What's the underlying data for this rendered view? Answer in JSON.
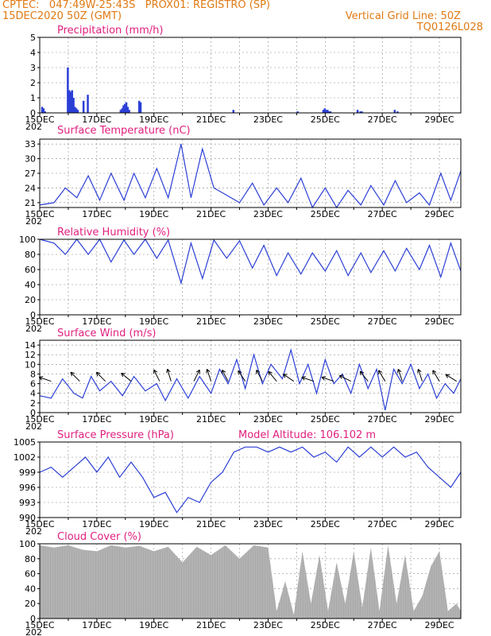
{
  "header": {
    "line1_left": "CPTEC:   047:49W-25:43S   PROX01: REGISTRO (SP)",
    "line2_left": "15DEC2020 50Z (GMT)",
    "line2_right": "Vertical Grid Line: 50Z",
    "line3_right": "TQ0126L028"
  },
  "colors": {
    "title": "#e0207f",
    "header": "#e07a14",
    "line": "#2b3fd6",
    "bar": "#2b3fd6",
    "cloud": "#aaaaaa"
  },
  "x_axis": {
    "labels": [
      "15DEC",
      "17DEC",
      "19DEC",
      "21DEC",
      "23DEC",
      "25DEC",
      "27DEC",
      "29DEC"
    ],
    "label_days": [
      0,
      2,
      4,
      6,
      8,
      10,
      12,
      14
    ],
    "cut_label": "202"
  },
  "chart_data": [
    {
      "id": "precip",
      "type": "bar",
      "title": "Precipitation (mm/h)",
      "ylim": [
        0,
        5
      ],
      "yticks": [
        0,
        1,
        2,
        3,
        4,
        5
      ],
      "series": [
        {
          "x": [
            0.05,
            0.1,
            0.15,
            0.95,
            1.0,
            1.05,
            1.1,
            1.15,
            1.2,
            1.25,
            1.3,
            1.5,
            1.65,
            2.8,
            2.85,
            2.9,
            2.95,
            3.0,
            3.05,
            3.1,
            3.45,
            3.5,
            6.75,
            9.0,
            9.9,
            9.95,
            10.0,
            10.05,
            10.1,
            10.15,
            11.1,
            11.2,
            11.25,
            12.4,
            12.5
          ],
          "values": [
            0.4,
            0.3,
            0.1,
            3.0,
            1.5,
            1.4,
            1.5,
            1.0,
            0.4,
            0.3,
            0.2,
            0.8,
            1.2,
            0.2,
            0.3,
            0.5,
            0.6,
            0.7,
            0.4,
            0.2,
            0.8,
            0.7,
            0.2,
            0.1,
            0.2,
            0.3,
            0.2,
            0.2,
            0.1,
            0.1,
            0.2,
            0.1,
            0.1,
            0.2,
            0.1
          ]
        }
      ]
    },
    {
      "id": "temp",
      "type": "line",
      "title": "Surface Temperature (nC)",
      "ylim": [
        20,
        34
      ],
      "yticks": [
        21,
        24,
        27,
        30,
        33
      ],
      "series": [
        {
          "x": [
            0,
            0.5,
            0.9,
            1.3,
            1.7,
            2.1,
            2.5,
            2.95,
            3.3,
            3.7,
            4.1,
            4.5,
            4.95,
            5.3,
            5.7,
            6.1,
            6.55,
            7.0,
            7.45,
            7.85,
            8.3,
            8.7,
            9.15,
            9.55,
            10.0,
            10.4,
            10.8,
            11.25,
            11.6,
            12.05,
            12.45,
            12.85,
            13.3,
            13.65,
            14.05,
            14.4,
            14.75
          ],
          "values": [
            20.5,
            21.0,
            24.0,
            22.0,
            26.5,
            21.5,
            27.0,
            21.5,
            27.0,
            22.0,
            28.0,
            22.0,
            33.0,
            22.0,
            32.0,
            24.0,
            22.5,
            21.0,
            25.0,
            20.5,
            24.0,
            21.0,
            26.0,
            20.0,
            24.0,
            20.0,
            23.5,
            20.5,
            24.5,
            20.5,
            25.5,
            21.0,
            23.0,
            20.5,
            27.0,
            21.5,
            27.5
          ]
        }
      ]
    },
    {
      "id": "rh",
      "type": "line",
      "title": "Relative Humidity (%)",
      "ylim": [
        0,
        100
      ],
      "yticks": [
        0,
        20,
        40,
        60,
        80,
        100
      ],
      "series": [
        {
          "x": [
            0,
            0.5,
            0.9,
            1.3,
            1.7,
            2.1,
            2.5,
            2.95,
            3.3,
            3.7,
            4.1,
            4.5,
            4.95,
            5.3,
            5.7,
            6.1,
            6.55,
            7.0,
            7.45,
            7.85,
            8.3,
            8.7,
            9.15,
            9.55,
            10.0,
            10.4,
            10.8,
            11.25,
            11.6,
            12.05,
            12.45,
            12.85,
            13.3,
            13.65,
            14.05,
            14.4,
            14.75
          ],
          "values": [
            100,
            95,
            80,
            100,
            80,
            100,
            70,
            99,
            80,
            100,
            75,
            99,
            42,
            95,
            48,
            99,
            75,
            98,
            62,
            92,
            52,
            82,
            54,
            82,
            58,
            85,
            52,
            82,
            56,
            85,
            58,
            88,
            60,
            92,
            50,
            95,
            58
          ]
        }
      ]
    },
    {
      "id": "wind",
      "type": "line",
      "title": "Surface Wind (m/s)",
      "ylim": [
        0,
        15
      ],
      "yticks": [
        0,
        2,
        4,
        6,
        8,
        10,
        12,
        14
      ],
      "series": [
        {
          "x": [
            0,
            0.4,
            0.8,
            1.2,
            1.5,
            1.8,
            2.1,
            2.5,
            2.9,
            3.3,
            3.7,
            4.1,
            4.4,
            4.8,
            5.2,
            5.6,
            6.0,
            6.3,
            6.6,
            6.9,
            7.2,
            7.5,
            7.8,
            8.1,
            8.5,
            8.8,
            9.1,
            9.4,
            9.7,
            10.0,
            10.3,
            10.6,
            10.9,
            11.2,
            11.5,
            11.8,
            12.1,
            12.4,
            12.7,
            13.0,
            13.3,
            13.6,
            13.9,
            14.2,
            14.5,
            14.75
          ],
          "values": [
            3.5,
            3,
            7,
            4,
            3,
            7.5,
            4.5,
            6.5,
            3.5,
            7.5,
            4.5,
            6,
            2.5,
            7,
            3,
            7.5,
            4,
            9,
            6,
            11,
            5,
            12,
            6,
            10,
            7,
            13,
            6,
            10,
            4,
            11,
            6,
            8,
            4,
            10,
            5,
            9,
            0.5,
            9,
            6,
            10,
            5,
            8,
            3,
            6,
            4,
            7
          ]
        }
      ],
      "barbs": [
        {
          "x": 0.4,
          "u": -1.5,
          "v": 0.5
        },
        {
          "x": 1.4,
          "u": -1.0,
          "v": 1.0
        },
        {
          "x": 2.3,
          "u": -1.0,
          "v": 1.0
        },
        {
          "x": 3.2,
          "u": -1.2,
          "v": 1.0
        },
        {
          "x": 4.2,
          "u": -0.5,
          "v": 1.0
        },
        {
          "x": 4.6,
          "u": -0.3,
          "v": 1.0
        },
        {
          "x": 5.4,
          "u": 0.5,
          "v": 1.0
        },
        {
          "x": 6.0,
          "u": -0.5,
          "v": 1.5
        },
        {
          "x": 6.6,
          "u": -0.8,
          "v": 1.5
        },
        {
          "x": 7.2,
          "u": -1.0,
          "v": 1.5
        },
        {
          "x": 7.8,
          "u": -0.8,
          "v": 1.5
        },
        {
          "x": 8.3,
          "u": -1.0,
          "v": 1.2
        },
        {
          "x": 8.9,
          "u": -1.5,
          "v": 1.0
        },
        {
          "x": 9.6,
          "u": -1.5,
          "v": 0.5
        },
        {
          "x": 10.3,
          "u": -1.5,
          "v": 0.5
        },
        {
          "x": 10.9,
          "u": -1.0,
          "v": 0.5
        },
        {
          "x": 11.5,
          "u": -0.8,
          "v": 1.0
        },
        {
          "x": 12.1,
          "u": -0.6,
          "v": 1.0
        },
        {
          "x": 12.7,
          "u": -0.5,
          "v": 1.5
        },
        {
          "x": 13.4,
          "u": -0.5,
          "v": 1.5
        },
        {
          "x": 14.0,
          "u": -0.6,
          "v": 1.0
        },
        {
          "x": 14.6,
          "u": -0.8,
          "v": 0.5
        }
      ]
    },
    {
      "id": "press",
      "type": "line",
      "title": "Surface Pressure (hPa)",
      "title2": "Model Altitude: 106.102  m",
      "ylim": [
        990,
        1005
      ],
      "yticks": [
        990,
        993,
        996,
        999,
        1002,
        1005
      ],
      "series": [
        {
          "x": [
            0,
            0.4,
            0.8,
            1.2,
            1.6,
            2.0,
            2.4,
            2.8,
            3.2,
            3.6,
            4.0,
            4.4,
            4.8,
            5.2,
            5.6,
            6.0,
            6.4,
            6.8,
            7.2,
            7.6,
            8.0,
            8.4,
            8.8,
            9.2,
            9.6,
            10.0,
            10.4,
            10.8,
            11.2,
            11.6,
            12.0,
            12.4,
            12.8,
            13.2,
            13.6,
            14.0,
            14.4,
            14.75
          ],
          "values": [
            999,
            1000,
            998,
            1000,
            1002,
            999,
            1002,
            998,
            1001,
            998,
            994,
            995,
            991,
            994,
            993,
            997,
            999,
            1003,
            1004,
            1004,
            1003,
            1004,
            1003,
            1004,
            1002,
            1003,
            1001,
            1004,
            1002,
            1004,
            1002,
            1004,
            1002,
            1003,
            1000,
            998,
            996,
            999
          ]
        }
      ]
    },
    {
      "id": "cloud",
      "type": "area",
      "title": "Cloud Cover (%)",
      "ylim": [
        0,
        100
      ],
      "yticks": [
        0,
        20,
        40,
        60,
        80,
        100
      ],
      "series": [
        {
          "x": [
            0,
            0.5,
            1.0,
            1.5,
            2.0,
            2.5,
            3.0,
            3.5,
            4.0,
            4.5,
            5.0,
            5.5,
            6.0,
            6.5,
            7.0,
            7.5,
            8.0,
            8.3,
            8.6,
            8.9,
            9.2,
            9.5,
            9.8,
            10.1,
            10.4,
            10.7,
            11.0,
            11.3,
            11.6,
            11.9,
            12.2,
            12.5,
            12.8,
            13.1,
            13.4,
            13.7,
            14.0,
            14.3,
            14.6,
            14.75
          ],
          "values": [
            98,
            95,
            98,
            92,
            90,
            98,
            95,
            97,
            90,
            96,
            75,
            96,
            85,
            98,
            80,
            98,
            95,
            10,
            50,
            5,
            90,
            20,
            85,
            10,
            75,
            20,
            90,
            15,
            95,
            10,
            98,
            20,
            85,
            10,
            30,
            70,
            90,
            10,
            20,
            10
          ]
        }
      ]
    }
  ]
}
